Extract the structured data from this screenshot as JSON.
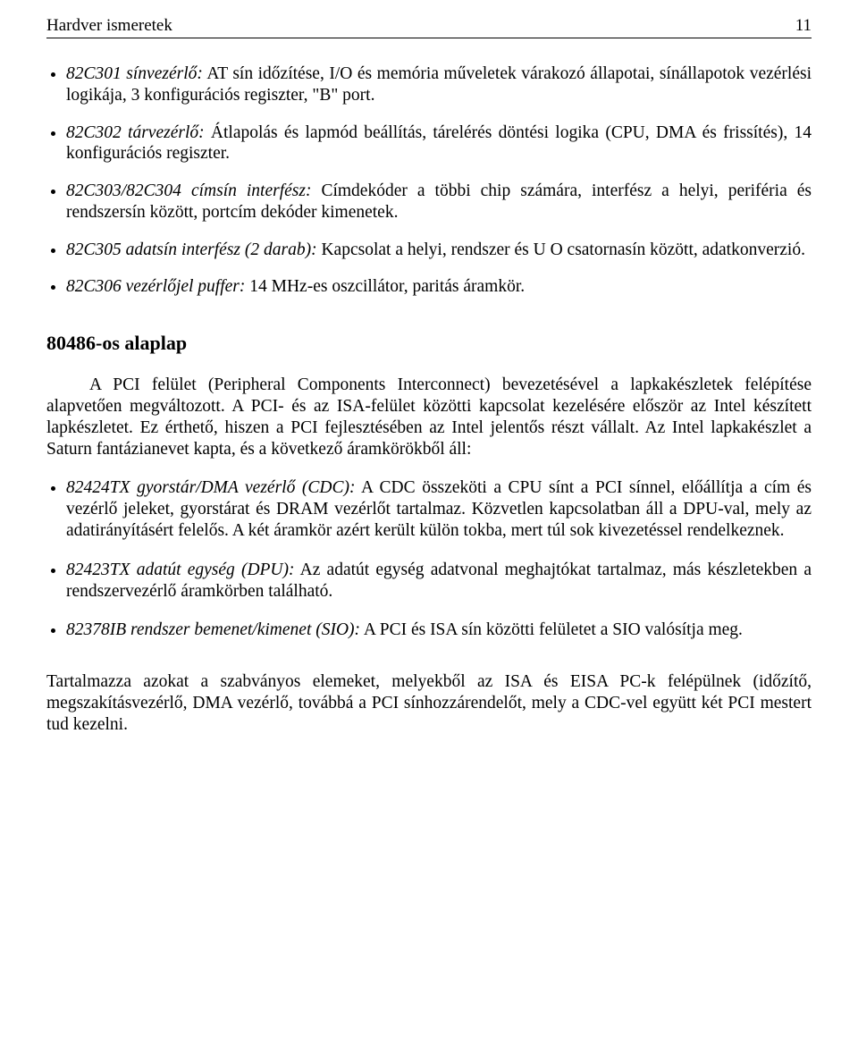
{
  "header": {
    "title": "Hardver ismeretek",
    "page": "11"
  },
  "list1": [
    {
      "lead": "82C301 sínvezérlő:",
      "rest": " AT sín időzítése, I/O és memória műveletek várakozó állapotai, sínállapotok vezérlési logikája, 3 konfigurációs regiszter, \"B\" port."
    },
    {
      "lead": "82C302 tárvezérlő:",
      "rest": " Átlapolás és lapmód beállítás, tárelérés döntési logika (CPU, DMA és frissítés), 14 konfigurációs regiszter."
    },
    {
      "lead": "82C303/82C304 címsín interfész:",
      "rest": " Címdekóder a többi chip számára, interfész a helyi, periféria és rendszersín között, portcím dekóder kimenetek."
    },
    {
      "lead": "82C305 adatsín interfész (2 darab):",
      "rest": " Kapcsolat a helyi, rendszer és U O csatornasín között, adatkonverzió."
    },
    {
      "lead": "82C306 vezérlőjel puffer:",
      "rest": " 14 MHz-es oszcillátor, paritás áramkör."
    }
  ],
  "section_heading": "80486-os alaplap",
  "para1": "A PCI felület (Peripheral Components Interconnect) bevezetésével a lapkakészletek felépítése alapvetően megváltozott. A PCI- és az ISA-felület közötti kapcsolat kezelésére először az Intel készített lapkészletet. Ez érthető, hiszen a PCI fejlesztésében az Intel jelentős részt vállalt. Az Intel lapkakészlet a Saturn fantázianevet kapta, és a következő áramkörökből áll:",
  "list2": [
    {
      "lead": "82424TX gyorstár/DMA vezérlő (CDC):",
      "rest": " A CDC összeköti a CPU sínt a PCI sínnel, előállítja a cím és vezérlő jeleket, gyorstárat és DRAM vezérlőt tartalmaz. Közvetlen kapcsolatban áll a DPU-val, mely az adatirányításért felelős. A két áramkör azért került külön tokba, mert túl sok kivezetéssel rendelkeznek."
    },
    {
      "lead": "82423TX adatút egység (DPU):",
      "rest": " Az adatút egység adatvonal meghajtókat tartalmaz, más készletekben a rendszervezérlő áramkörben található."
    },
    {
      "lead": "82378IB rendszer bemenet/kimenet (SIO):",
      "rest": " A PCI és ISA sín közötti felületet a SIO valósítja meg."
    }
  ],
  "closing": "Tartalmazza azokat a szabványos elemeket, melyekből az ISA és EISA PC-k felépülnek (időzítő, megszakításvezérlő, DMA vezérlő, továbbá a PCI sínhozzárendelőt, mely a CDC-vel együtt két PCI mestert tud kezelni."
}
